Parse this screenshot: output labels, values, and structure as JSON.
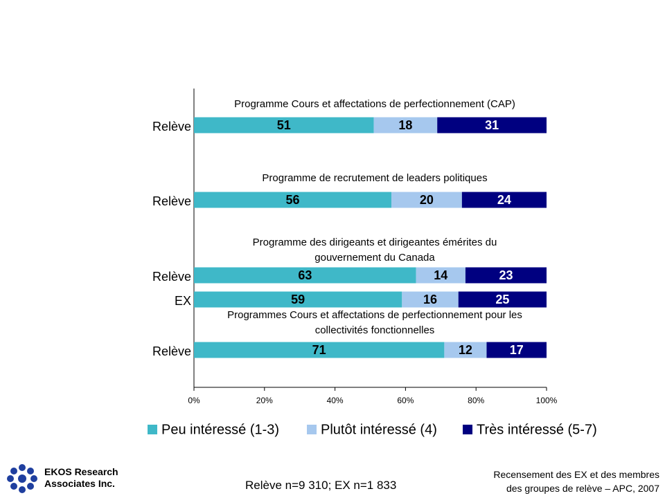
{
  "chart_data": {
    "type": "stacked-barh",
    "categories": [
      "Relève",
      "Relève",
      "Relève",
      "EX",
      "Relève"
    ],
    "annotations": [
      "Programme Cours et affectations de perfectionnement (CAP)",
      "Programme de recrutement de leaders politiques",
      "Programme des dirigeants et dirigeantes émérites du gouvernement du Canada",
      "Programmes Cours et affectations de perfectionnement pour les collectivités fonctionnelles"
    ],
    "series": [
      {
        "name": "Peu intéressé (1-3)",
        "color": "#3fb8c8",
        "values": [
          51,
          56,
          63,
          59,
          71
        ]
      },
      {
        "name": "Plutôt intéressé (4)",
        "color": "#a6c8ee",
        "values": [
          18,
          20,
          14,
          16,
          12
        ]
      },
      {
        "name": "Très intéressé (5-7)",
        "color": "#000080",
        "values": [
          31,
          24,
          23,
          25,
          17
        ]
      }
    ],
    "xlim": [
      0,
      100
    ],
    "xticks": [
      {
        "value": 0,
        "label": "0%"
      },
      {
        "value": 20,
        "label": "20%"
      },
      {
        "value": 40,
        "label": "40%"
      },
      {
        "value": 60,
        "label": "60%"
      },
      {
        "value": 80,
        "label": "80%"
      },
      {
        "value": 100,
        "label": "100%"
      }
    ],
    "legend": "bottom",
    "company": "EKOS Research\nAssociates Inc.",
    "sample": "Relève n=9 310; EX n=1 833",
    "source": "Recensement des EX et des membres\ndes groupes de relève – APC, 2007"
  }
}
